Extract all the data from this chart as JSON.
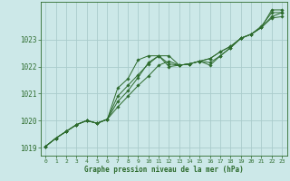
{
  "title": "",
  "xlabel": "Graphe pression niveau de la mer (hPa)",
  "ylabel": "",
  "background_color": "#cce8e8",
  "grid_color": "#aacccc",
  "line_color": "#2d6b2d",
  "marker_color": "#2d6b2d",
  "xlim": [
    -0.5,
    23.5
  ],
  "ylim": [
    1018.7,
    1024.4
  ],
  "xticks": [
    0,
    1,
    2,
    3,
    4,
    5,
    6,
    7,
    8,
    9,
    10,
    11,
    12,
    13,
    14,
    15,
    16,
    17,
    18,
    19,
    20,
    21,
    22,
    23
  ],
  "yticks": [
    1019,
    1020,
    1021,
    1022,
    1023
  ],
  "series": [
    [
      1019.05,
      1019.35,
      1019.6,
      1019.85,
      1020.0,
      1019.9,
      1020.05,
      1020.5,
      1020.9,
      1021.3,
      1021.65,
      1022.05,
      1022.2,
      1022.05,
      1022.1,
      1022.2,
      1022.3,
      1022.55,
      1022.75,
      1023.05,
      1023.2,
      1023.45,
      1023.85,
      1024.0
    ],
    [
      1019.05,
      1019.35,
      1019.6,
      1019.85,
      1020.0,
      1019.9,
      1020.05,
      1020.7,
      1021.1,
      1021.6,
      1022.15,
      1022.4,
      1022.4,
      1022.05,
      1022.1,
      1022.2,
      1022.3,
      1022.55,
      1022.75,
      1023.05,
      1023.2,
      1023.45,
      1024.1,
      1024.1
    ],
    [
      1019.05,
      1019.35,
      1019.6,
      1019.85,
      1020.0,
      1019.9,
      1020.05,
      1021.2,
      1021.55,
      1022.25,
      1022.4,
      1022.4,
      1022.0,
      1022.05,
      1022.1,
      1022.2,
      1022.15,
      1022.4,
      1022.7,
      1023.05,
      1023.2,
      1023.5,
      1024.0,
      1024.0
    ],
    [
      1019.05,
      1019.35,
      1019.6,
      1019.85,
      1020.0,
      1019.9,
      1020.05,
      1020.9,
      1021.3,
      1021.7,
      1022.1,
      1022.4,
      1022.1,
      1022.05,
      1022.1,
      1022.2,
      1022.05,
      1022.4,
      1022.7,
      1023.05,
      1023.2,
      1023.45,
      1023.8,
      1023.85
    ]
  ]
}
